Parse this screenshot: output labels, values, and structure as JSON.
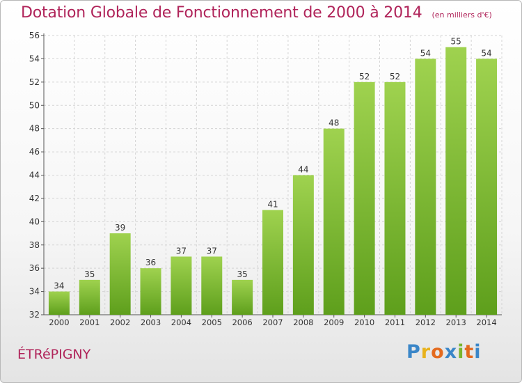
{
  "title": "Dotation Globale de Fonctionnement de 2000 à 2014",
  "subtitle": "(en milliers d'€)",
  "commune": "ÉTRéPIGNY",
  "logo": {
    "letters": [
      "P",
      "r",
      "o",
      "x",
      "i",
      "t",
      "i"
    ]
  },
  "colors": {
    "title": "#b0245a",
    "bar_light": "#9fd24f",
    "bar_dark": "#5e9f1c",
    "logo_letters": [
      "#3a86c8",
      "#e8b21c",
      "#e46a1e",
      "#3a86c8",
      "#7ab52e",
      "#e46a1e",
      "#3a86c8"
    ]
  },
  "chart_data": {
    "type": "bar",
    "title": "Dotation Globale de Fonctionnement de 2000 à 2014",
    "categories": [
      "2000",
      "2001",
      "2002",
      "2003",
      "2004",
      "2005",
      "2006",
      "2007",
      "2008",
      "2009",
      "2010",
      "2011",
      "2012",
      "2013",
      "2014"
    ],
    "values": [
      34,
      35,
      39,
      36,
      37,
      37,
      35,
      41,
      44,
      48,
      52,
      52,
      54,
      55,
      54
    ],
    "ylim": [
      32,
      56
    ],
    "yticks": [
      32,
      34,
      36,
      38,
      40,
      42,
      44,
      46,
      48,
      50,
      52,
      54,
      56
    ],
    "grid": true,
    "xlabel": "",
    "ylabel": ""
  }
}
